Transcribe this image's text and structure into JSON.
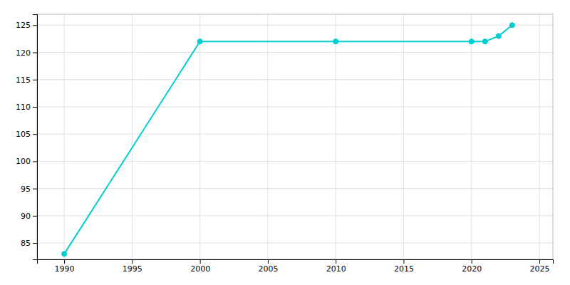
{
  "chart_data": {
    "type": "line",
    "x": [
      1990,
      2000,
      2010,
      2020,
      2021,
      2022,
      2023
    ],
    "values": [
      83,
      122,
      122,
      122,
      122,
      123,
      125
    ],
    "color": "#00CED1",
    "marker": "circle",
    "xlim": [
      1988,
      2026
    ],
    "ylim": [
      82,
      127
    ],
    "xticks": [
      1990,
      1995,
      2000,
      2005,
      2010,
      2015,
      2020,
      2025
    ],
    "yticks": [
      85,
      90,
      95,
      100,
      105,
      110,
      115,
      120,
      125
    ],
    "grid": true
  }
}
